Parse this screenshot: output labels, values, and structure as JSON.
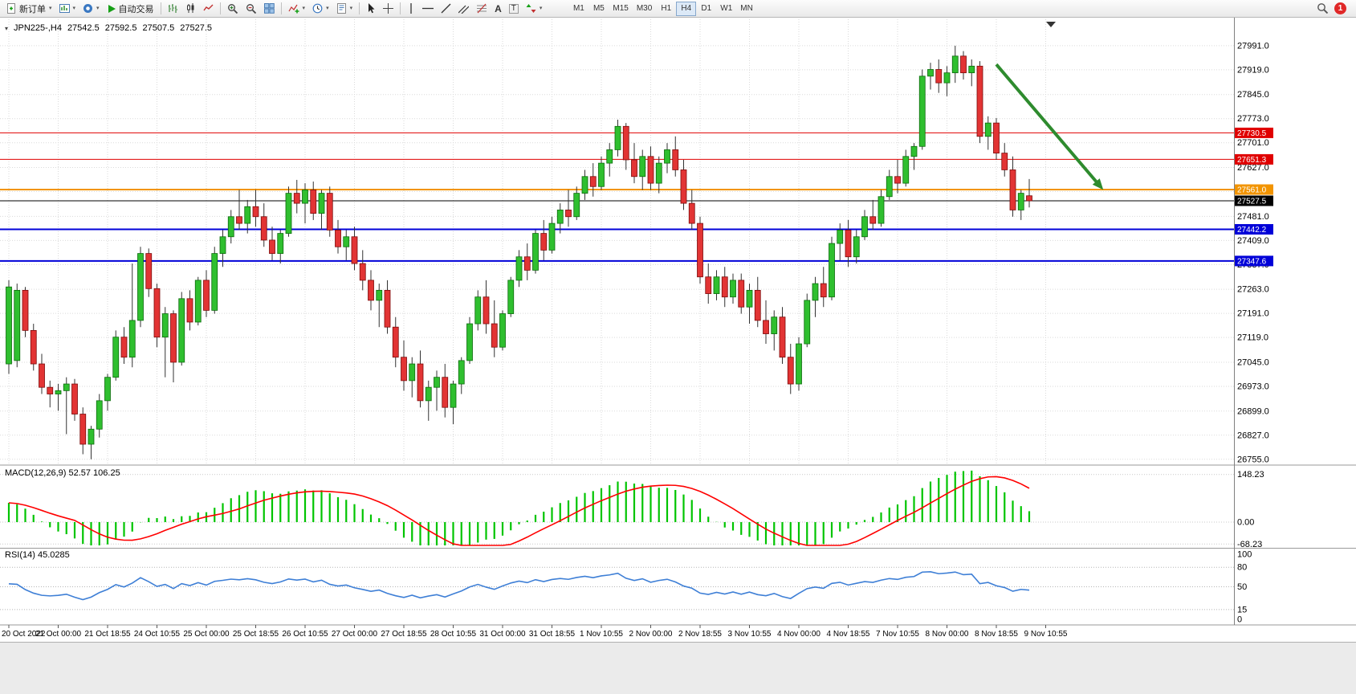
{
  "toolbar": {
    "new_order": "新订单",
    "autotrading": "自动交易",
    "timeframes": [
      "M1",
      "M5",
      "M15",
      "M30",
      "H1",
      "H4",
      "D1",
      "W1",
      "MN"
    ],
    "active_timeframe": "H4",
    "notification_badge": "1"
  },
  "chart_header": {
    "symbol_period": "JPN225-,H4",
    "open": "27542.5",
    "high": "27592.5",
    "low": "27507.5",
    "close": "27527.5"
  },
  "indicators": {
    "macd_label": "MACD(12,26,9) 52.57 106.25",
    "rsi_label": "RSI(14) 45.0285"
  },
  "chart_data": {
    "type": "candlestick",
    "symbol": "JPN225-",
    "period": "H4",
    "price_axis": [
      "27991.0",
      "27919.0",
      "27845.0",
      "27773.0",
      "27701.0",
      "27627.0",
      "27555.0",
      "27481.0",
      "27409.0",
      "27337.0",
      "27263.0",
      "27191.0",
      "27119.0",
      "27045.0",
      "26973.0",
      "26899.0",
      "26827.0",
      "26755.0"
    ],
    "time_axis": [
      "20 Oct 2022",
      "21 Oct 00:00",
      "21 Oct 18:55",
      "24 Oct 10:55",
      "25 Oct 00:00",
      "25 Oct 18:55",
      "26 Oct 10:55",
      "27 Oct 00:00",
      "27 Oct 18:55",
      "28 Oct 10:55",
      "31 Oct 00:00",
      "31 Oct 18:55",
      "1 Nov 10:55",
      "2 Nov 00:00",
      "2 Nov 18:55",
      "3 Nov 10:55",
      "4 Nov 00:00",
      "4 Nov 18:55",
      "7 Nov 10:55",
      "8 Nov 00:00",
      "8 Nov 18:55",
      "9 Nov 10:55"
    ],
    "hlines": [
      {
        "label": "27730.5",
        "value": 27730.5,
        "color": "#E00000",
        "width": 1
      },
      {
        "label": "27651.3",
        "value": 27651.3,
        "color": "#E00000",
        "width": 1
      },
      {
        "label": "27561.0",
        "value": 27561.0,
        "color": "#F29400",
        "width": 2
      },
      {
        "label": "27527.5",
        "value": 27527.5,
        "color": "#000000",
        "width": 1
      },
      {
        "label": "27442.2",
        "value": 27442.2,
        "color": "#0000D8",
        "width": 2
      },
      {
        "label": "27347.6",
        "value": 27347.6,
        "color": "#0000D8",
        "width": 2
      }
    ],
    "current_price": 27527.5,
    "arrow_annotation": {
      "from_bar": 120,
      "from_price": 27935,
      "to_bar": 133,
      "to_price": 27560,
      "color": "#2E8B2E",
      "width": 4
    },
    "macd": {
      "params": "12,26,9",
      "value": 52.57,
      "signal_value": 106.25,
      "axis": [
        "148.23",
        "0.00",
        "-68.23"
      ]
    },
    "rsi": {
      "period": 14,
      "value": 45.0285,
      "axis": [
        "100",
        "80",
        "50",
        "15",
        "0"
      ],
      "levels": [
        80,
        50,
        15
      ]
    },
    "colors": {
      "bull": "#2FBF2F",
      "bear": "#E23434",
      "wick": "#333333",
      "macd_hist": "#00C400",
      "macd_signal": "#FF0000",
      "rsi_line": "#3E7FD6",
      "grid": "#DADADA",
      "arrow": "#2E8B2E"
    },
    "candles": [
      [
        27040,
        27290,
        27010,
        27270
      ],
      [
        27050,
        27280,
        27030,
        27260
      ],
      [
        27260,
        27270,
        27120,
        27140
      ],
      [
        27140,
        27160,
        27020,
        27040
      ],
      [
        27040,
        27070,
        26950,
        26970
      ],
      [
        26970,
        26990,
        26910,
        26950
      ],
      [
        26950,
        26980,
        26900,
        26960
      ],
      [
        26960,
        27000,
        26830,
        26980
      ],
      [
        26980,
        26995,
        26870,
        26890
      ],
      [
        26890,
        26910,
        26770,
        26800
      ],
      [
        26800,
        26855,
        26755,
        26845
      ],
      [
        26845,
        26950,
        26820,
        26930
      ],
      [
        26930,
        27010,
        26900,
        27000
      ],
      [
        27000,
        27140,
        26990,
        27120
      ],
      [
        27120,
        27150,
        27040,
        27060
      ],
      [
        27060,
        27340,
        27030,
        27170
      ],
      [
        27170,
        27390,
        27150,
        27370
      ],
      [
        27370,
        27385,
        27240,
        27265
      ],
      [
        27265,
        27280,
        27090,
        27120
      ],
      [
        27120,
        27210,
        27000,
        27190
      ],
      [
        27190,
        27200,
        26985,
        27045
      ],
      [
        27045,
        27255,
        27035,
        27235
      ],
      [
        27235,
        27260,
        27140,
        27165
      ],
      [
        27165,
        27300,
        27155,
        27290
      ],
      [
        27290,
        27320,
        27180,
        27200
      ],
      [
        27200,
        27390,
        27190,
        27370
      ],
      [
        27370,
        27440,
        27330,
        27420
      ],
      [
        27420,
        27500,
        27400,
        27480
      ],
      [
        27480,
        27560,
        27440,
        27460
      ],
      [
        27460,
        27530,
        27430,
        27510
      ],
      [
        27510,
        27560,
        27450,
        27480
      ],
      [
        27480,
        27520,
        27390,
        27410
      ],
      [
        27410,
        27450,
        27350,
        27370
      ],
      [
        27370,
        27440,
        27340,
        27430
      ],
      [
        27430,
        27570,
        27420,
        27550
      ],
      [
        27550,
        27590,
        27490,
        27520
      ],
      [
        27520,
        27580,
        27460,
        27560
      ],
      [
        27560,
        27585,
        27470,
        27490
      ],
      [
        27490,
        27560,
        27440,
        27550
      ],
      [
        27550,
        27570,
        27420,
        27440
      ],
      [
        27440,
        27470,
        27370,
        27390
      ],
      [
        27390,
        27440,
        27350,
        27420
      ],
      [
        27420,
        27450,
        27320,
        27340
      ],
      [
        27340,
        27380,
        27260,
        27290
      ],
      [
        27290,
        27320,
        27200,
        27230
      ],
      [
        27230,
        27280,
        27150,
        27260
      ],
      [
        27260,
        27290,
        27130,
        27150
      ],
      [
        27150,
        27180,
        27030,
        27060
      ],
      [
        27060,
        27110,
        26960,
        26990
      ],
      [
        26990,
        27060,
        26940,
        27040
      ],
      [
        27040,
        27080,
        26910,
        26930
      ],
      [
        26930,
        26990,
        26870,
        26970
      ],
      [
        26970,
        27020,
        26900,
        27000
      ],
      [
        27000,
        27040,
        26880,
        26910
      ],
      [
        26910,
        26990,
        26860,
        26980
      ],
      [
        26980,
        27060,
        26950,
        27050
      ],
      [
        27050,
        27180,
        27040,
        27160
      ],
      [
        27160,
        27260,
        27140,
        27240
      ],
      [
        27240,
        27290,
        27130,
        27160
      ],
      [
        27160,
        27230,
        27060,
        27090
      ],
      [
        27090,
        27200,
        27080,
        27190
      ],
      [
        27190,
        27300,
        27180,
        27290
      ],
      [
        27290,
        27380,
        27270,
        27360
      ],
      [
        27360,
        27400,
        27290,
        27320
      ],
      [
        27320,
        27440,
        27310,
        27430
      ],
      [
        27430,
        27470,
        27350,
        27380
      ],
      [
        27380,
        27480,
        27370,
        27460
      ],
      [
        27460,
        27520,
        27430,
        27500
      ],
      [
        27500,
        27560,
        27450,
        27480
      ],
      [
        27480,
        27570,
        27470,
        27550
      ],
      [
        27550,
        27620,
        27530,
        27600
      ],
      [
        27600,
        27640,
        27540,
        27570
      ],
      [
        27570,
        27660,
        27560,
        27640
      ],
      [
        27640,
        27700,
        27600,
        27680
      ],
      [
        27680,
        27770,
        27660,
        27750
      ],
      [
        27750,
        27760,
        27620,
        27650
      ],
      [
        27650,
        27700,
        27580,
        27600
      ],
      [
        27600,
        27680,
        27560,
        27660
      ],
      [
        27660,
        27690,
        27560,
        27580
      ],
      [
        27580,
        27660,
        27550,
        27640
      ],
      [
        27640,
        27700,
        27610,
        27680
      ],
      [
        27680,
        27720,
        27600,
        27620
      ],
      [
        27620,
        27650,
        27500,
        27520
      ],
      [
        27520,
        27560,
        27440,
        27460
      ],
      [
        27460,
        27480,
        27280,
        27300
      ],
      [
        27300,
        27340,
        27220,
        27250
      ],
      [
        27250,
        27320,
        27230,
        27300
      ],
      [
        27300,
        27330,
        27210,
        27240
      ],
      [
        27240,
        27310,
        27220,
        27290
      ],
      [
        27290,
        27310,
        27190,
        27210
      ],
      [
        27210,
        27280,
        27160,
        27260
      ],
      [
        27260,
        27300,
        27150,
        27170
      ],
      [
        27170,
        27230,
        27100,
        27130
      ],
      [
        27130,
        27200,
        27080,
        27180
      ],
      [
        27180,
        27210,
        27040,
        27060
      ],
      [
        27060,
        27100,
        26950,
        26980
      ],
      [
        26980,
        27120,
        26960,
        27100
      ],
      [
        27100,
        27250,
        27090,
        27230
      ],
      [
        27230,
        27300,
        27180,
        27280
      ],
      [
        27280,
        27330,
        27210,
        27240
      ],
      [
        27240,
        27420,
        27230,
        27400
      ],
      [
        27400,
        27460,
        27350,
        27440
      ],
      [
        27440,
        27470,
        27330,
        27360
      ],
      [
        27360,
        27440,
        27340,
        27420
      ],
      [
        27420,
        27500,
        27410,
        27480
      ],
      [
        27480,
        27530,
        27440,
        27460
      ],
      [
        27460,
        27560,
        27450,
        27540
      ],
      [
        27540,
        27620,
        27530,
        27600
      ],
      [
        27600,
        27650,
        27550,
        27580
      ],
      [
        27580,
        27680,
        27570,
        27660
      ],
      [
        27660,
        27700,
        27620,
        27690
      ],
      [
        27690,
        27920,
        27680,
        27900
      ],
      [
        27900,
        27940,
        27860,
        27920
      ],
      [
        27920,
        27950,
        27850,
        27880
      ],
      [
        27880,
        27930,
        27840,
        27910
      ],
      [
        27910,
        27991,
        27880,
        27960
      ],
      [
        27960,
        27975,
        27890,
        27910
      ],
      [
        27910,
        27950,
        27870,
        27930
      ],
      [
        27930,
        27945,
        27700,
        27720
      ],
      [
        27720,
        27780,
        27680,
        27760
      ],
      [
        27760,
        27775,
        27650,
        27670
      ],
      [
        27670,
        27700,
        27600,
        27620
      ],
      [
        27620,
        27660,
        27480,
        27500
      ],
      [
        27500,
        27560,
        27470,
        27550
      ],
      [
        27542.5,
        27592.5,
        27507.5,
        27527.5
      ]
    ]
  }
}
